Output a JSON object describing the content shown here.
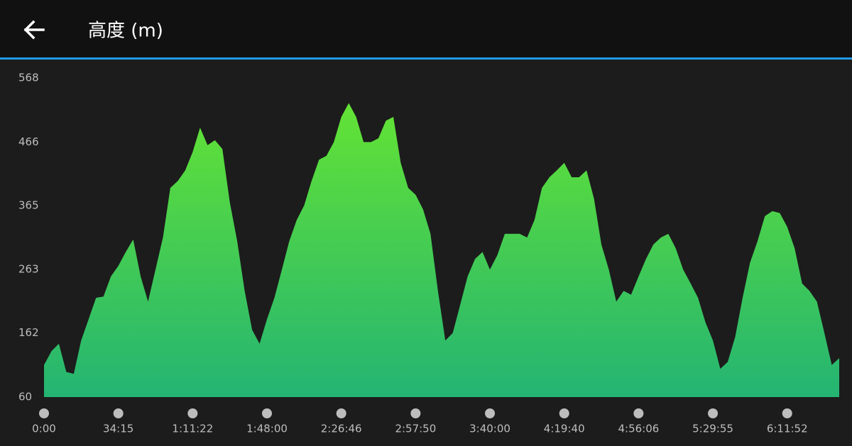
{
  "header": {
    "title": "高度 (m)"
  },
  "chart_data": {
    "type": "area",
    "categories": [
      "0:00",
      null,
      null,
      null,
      null,
      null,
      null,
      null,
      null,
      null,
      "34:15",
      null,
      null,
      null,
      null,
      null,
      null,
      null,
      null,
      null,
      "1:11:22",
      null,
      null,
      null,
      null,
      null,
      null,
      null,
      null,
      null,
      "1:48:00",
      null,
      null,
      null,
      null,
      null,
      null,
      null,
      null,
      null,
      "2:26:46",
      null,
      null,
      null,
      null,
      null,
      null,
      null,
      null,
      null,
      "2:57:50",
      null,
      null,
      null,
      null,
      null,
      null,
      null,
      null,
      null,
      "3:40:00",
      null,
      null,
      null,
      null,
      null,
      null,
      null,
      null,
      null,
      "4:19:40",
      null,
      null,
      null,
      null,
      null,
      null,
      null,
      null,
      null,
      "4:56:06",
      null,
      null,
      null,
      null,
      null,
      null,
      null,
      null,
      null,
      "5:29:55",
      null,
      null,
      null,
      null,
      null,
      null,
      null,
      null,
      null,
      "6:11:52",
      null,
      null,
      null,
      null,
      null,
      null,
      null
    ],
    "values": [
      111,
      133,
      145,
      100,
      97,
      150,
      184,
      218,
      220,
      252,
      269,
      291,
      311,
      252,
      212,
      263,
      314,
      393,
      404,
      421,
      450,
      489,
      461,
      469,
      455,
      370,
      308,
      229,
      167,
      145,
      184,
      218,
      263,
      308,
      342,
      365,
      404,
      438,
      444,
      466,
      506,
      528,
      506,
      466,
      466,
      472,
      500,
      506,
      433,
      393,
      382,
      359,
      320,
      229,
      150,
      162,
      207,
      252,
      280,
      291,
      263,
      286,
      320,
      320,
      320,
      314,
      342,
      393,
      410,
      421,
      433,
      410,
      410,
      421,
      376,
      303,
      263,
      212,
      229,
      223,
      252,
      280,
      303,
      314,
      320,
      297,
      263,
      241,
      218,
      179,
      150,
      105,
      116,
      156,
      218,
      274,
      308,
      348,
      356,
      353,
      331,
      297,
      241,
      229,
      212,
      162,
      111,
      122
    ],
    "gradient": [
      "#63e334",
      "#24b473"
    ],
    "ylim": [
      60,
      568
    ],
    "yticks": [
      60,
      162,
      263,
      365,
      466,
      568
    ],
    "grid": false
  }
}
